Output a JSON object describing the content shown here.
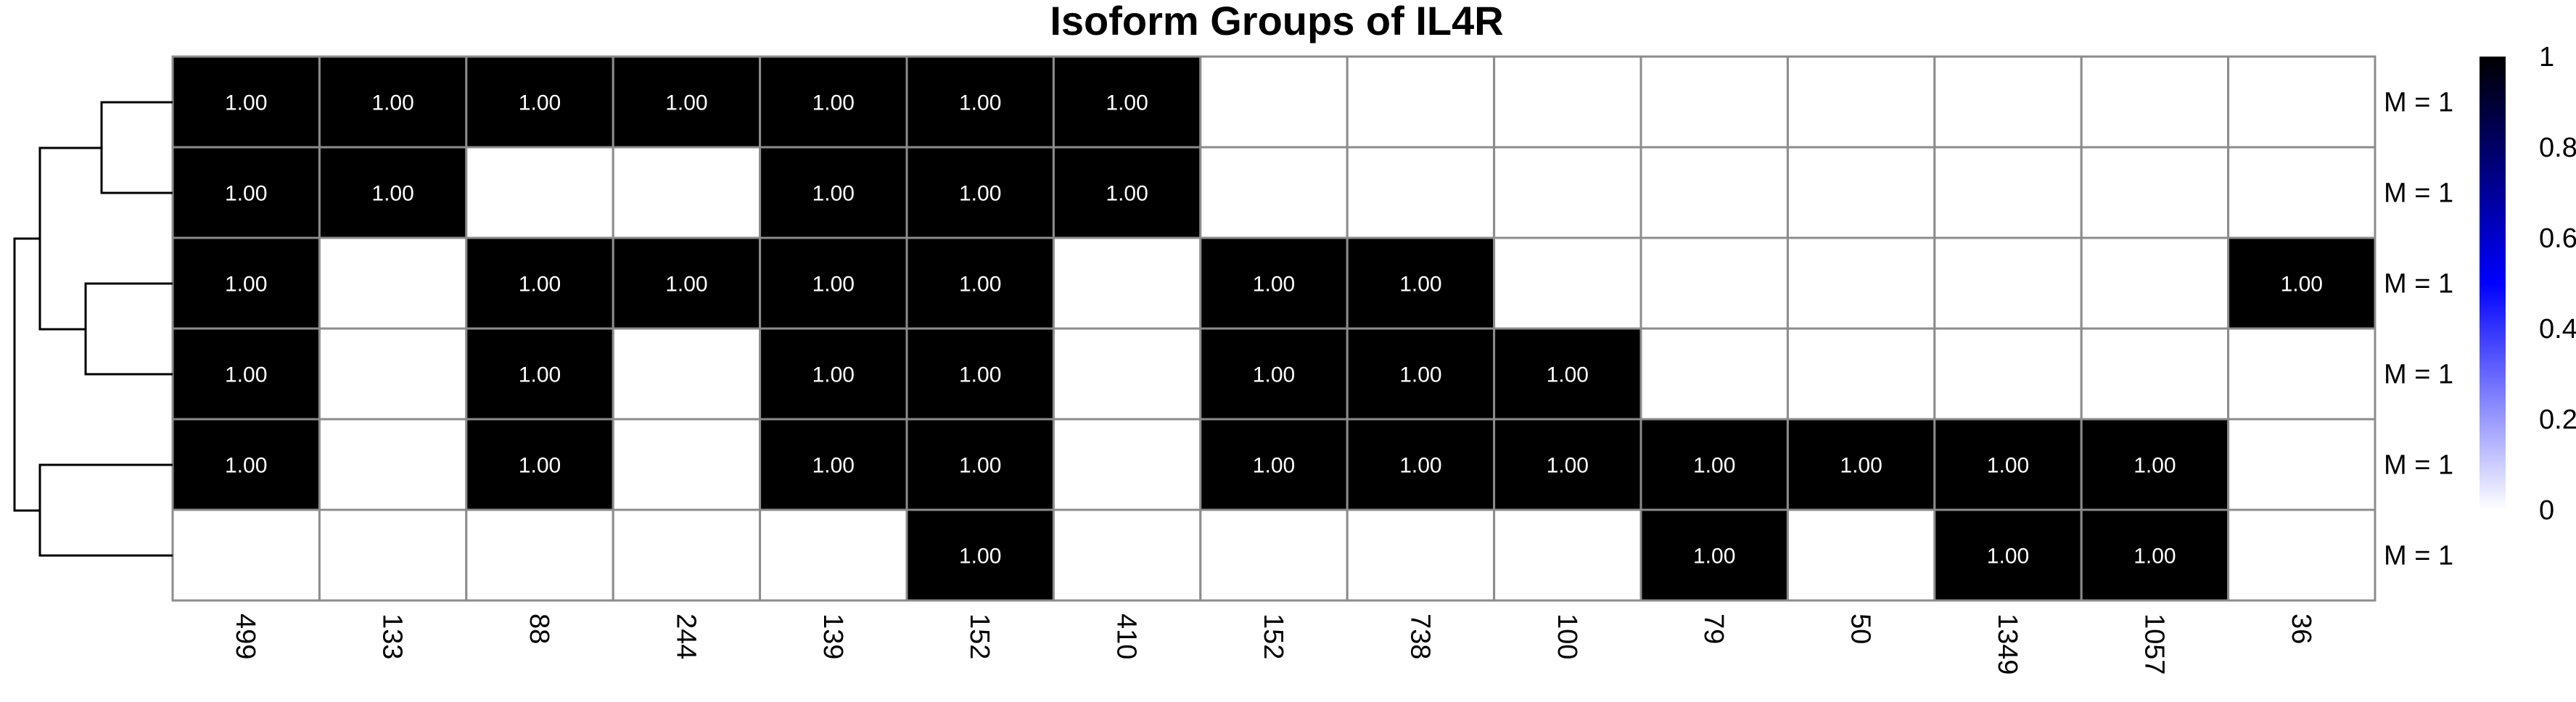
{
  "chart_data": {
    "type": "heatmap",
    "title": "Isoform Groups of IL4R",
    "columns": [
      "499",
      "133",
      "88",
      "244",
      "139",
      "152",
      "410",
      "152",
      "738",
      "100",
      "79",
      "50",
      "1349",
      "1057",
      "36"
    ],
    "rows": [
      "M = 1",
      "M = 1",
      "M = 1",
      "M = 1",
      "M = 1",
      "M = 1"
    ],
    "values": [
      [
        1,
        1,
        1,
        1,
        1,
        1,
        1,
        0,
        0,
        0,
        0,
        0,
        0,
        0,
        0
      ],
      [
        1,
        1,
        0,
        0,
        1,
        1,
        1,
        0,
        0,
        0,
        0,
        0,
        0,
        0,
        0
      ],
      [
        1,
        0,
        1,
        1,
        1,
        1,
        0,
        1,
        1,
        0,
        0,
        0,
        0,
        0,
        1
      ],
      [
        1,
        0,
        1,
        0,
        1,
        1,
        0,
        1,
        1,
        1,
        0,
        0,
        0,
        0,
        0
      ],
      [
        1,
        0,
        1,
        0,
        1,
        1,
        0,
        1,
        1,
        1,
        1,
        1,
        1,
        1,
        0
      ],
      [
        0,
        0,
        0,
        0,
        0,
        1,
        0,
        0,
        0,
        0,
        1,
        0,
        1,
        1,
        0
      ]
    ],
    "cell_text": "1.00",
    "colorbar": {
      "ticks": [
        "0",
        "0.2",
        "0.4",
        "0.6",
        "0.8",
        "1"
      ],
      "range": [
        0,
        1
      ],
      "colors": [
        "#ffffff",
        "#0000ff",
        "#000000"
      ]
    },
    "dendrogram": "rows",
    "grid": true
  }
}
